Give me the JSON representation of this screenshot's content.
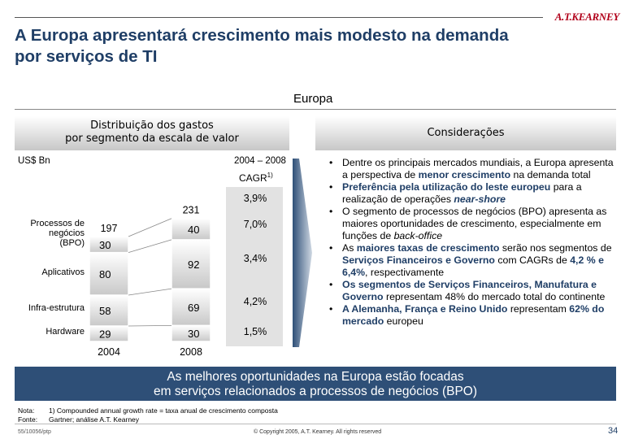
{
  "brand": "A.T.KEARNEY",
  "title_line1": "A Europa apresentará crescimento mais modesto na demanda",
  "title_line2": "por serviços de TI",
  "region": "Europa",
  "left_header_line1": "Distribuição dos gastos",
  "left_header_line2": "por segmento da escala de valor",
  "right_header": "Considerações",
  "unit": "US$ Bn",
  "period": "2004 – 2008",
  "cagr_label": "CAGR",
  "cagr_sup": "1)",
  "chart_data": {
    "type": "bar",
    "stacked": true,
    "categories": [
      "2004",
      "2008"
    ],
    "totals": [
      197,
      231
    ],
    "series": [
      {
        "name": "Hardware",
        "values": [
          29,
          30
        ],
        "cagr": "1,5%"
      },
      {
        "name": "Infra-estrutura",
        "values": [
          58,
          69
        ],
        "cagr": "4,2%"
      },
      {
        "name": "Aplicativos",
        "values": [
          80,
          92
        ],
        "cagr": "3,4%"
      },
      {
        "name": "Processos de negócios (BPO)",
        "values": [
          30,
          40
        ],
        "cagr": "7,0%"
      }
    ],
    "total_cagr": "3,9%",
    "colors": {
      "bar_top": "#ffffff",
      "bar_bottom": "#c8c8c8",
      "cagr_box": "#e2e2e2"
    }
  },
  "bullets": [
    [
      {
        "t": "Dentre os principais mercados mundiais, a Europa apresenta a perspectiva de "
      },
      {
        "t": "menor crescimento",
        "s": "hl"
      },
      {
        "t": " na demanda total"
      }
    ],
    [
      {
        "t": "Preferência pela utilização do leste europeu",
        "s": "hl"
      },
      {
        "t": " para a realização de operações "
      },
      {
        "t": "near-shore",
        "s": "hl it"
      }
    ],
    [
      {
        "t": "O segmento de processos de negócios (BPO) apresenta as maiores oportunidades de crescimento, especialmente em funções de "
      },
      {
        "t": "back-office",
        "s": "it"
      }
    ],
    [
      {
        "t": "As "
      },
      {
        "t": "maiores taxas de crescimento",
        "s": "hl"
      },
      {
        "t": " serão nos segmentos de "
      },
      {
        "t": "Serviços Financeiros e Governo",
        "s": "hl"
      },
      {
        "t": " com CAGRs de "
      },
      {
        "t": "4,2 % e 6,4%",
        "s": "hl"
      },
      {
        "t": ", respectivamente"
      }
    ],
    [
      {
        "t": "Os segmentos de Serviços Financeiros, Manufatura e Governo",
        "s": "hl"
      },
      {
        "t": " representam 48% do mercado total do continente"
      }
    ],
    [
      {
        "t": "A Alemanha, França e Reino Unido",
        "s": "hl"
      },
      {
        "t": " representam "
      },
      {
        "t": "62% do mercado",
        "s": "hl"
      },
      {
        "t": " europeu"
      }
    ]
  ],
  "banner_line1": "As melhores oportunidades na Europa estão focadas",
  "banner_line2": "em serviços relacionados a processos de negócios (BPO)",
  "note_key": "Nota:",
  "note_text": "1) Compounded annual growth rate = taxa anual de crescimento composta",
  "source_key": "Fonte:",
  "source_text": "Gartner; análise A.T. Kearney",
  "footer_code": "55/10056/ptp",
  "footer_copyright": "© Copyright 2005, A.T. Kearney. All rights reserved",
  "page_number": "34"
}
